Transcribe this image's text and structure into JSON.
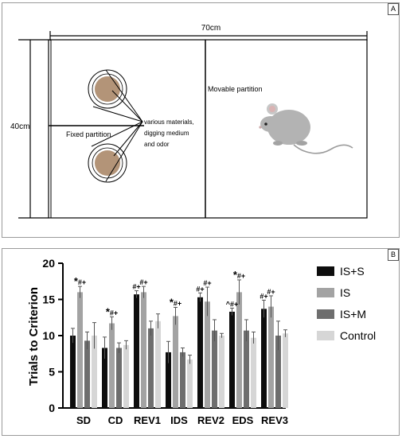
{
  "panel_a": {
    "label": "A",
    "width_text": "70cm",
    "height_text": "40cm",
    "fixed_partition": "Fixed partition",
    "movable_partition": "Movable partition",
    "materials_line1": "various materials,",
    "materials_line2": "digging medium",
    "materials_line3": "and odor"
  },
  "panel_b": {
    "label": "B"
  },
  "colors": {
    "IS+S": "#0d0d0d",
    "IS": "#a3a3a3",
    "IS+M": "#6e6e6e",
    "Control": "#d6d6d6"
  },
  "chart_data": {
    "type": "bar",
    "ylabel": "Trials to Criterion",
    "xlabel": "",
    "ylim": [
      0,
      20
    ],
    "yticks": [
      "0",
      "5",
      "10",
      "15",
      "20"
    ],
    "categories": [
      "SD",
      "CD",
      "REV1",
      "IDS",
      "REV2",
      "EDS",
      "REV3"
    ],
    "series": [
      {
        "name": "IS+S",
        "values": [
          10.0,
          8.3,
          15.7,
          7.7,
          15.3,
          13.3,
          13.7
        ],
        "errors": [
          1.0,
          1.5,
          0.5,
          1.5,
          0.6,
          0.5,
          1.2
        ]
      },
      {
        "name": "IS",
        "values": [
          16.0,
          11.7,
          16.0,
          12.7,
          14.7,
          16.0,
          14.0
        ],
        "errors": [
          0.8,
          0.9,
          0.8,
          1.2,
          2.0,
          1.7,
          1.5
        ]
      },
      {
        "name": "IS+M",
        "values": [
          9.3,
          8.3,
          11.0,
          7.7,
          10.7,
          10.7,
          10.0
        ],
        "errors": [
          1.2,
          0.7,
          1.0,
          0.6,
          1.5,
          1.5,
          2.0
        ]
      },
      {
        "name": "Control",
        "values": [
          10.0,
          8.7,
          12.0,
          6.7,
          10.0,
          9.7,
          10.3
        ],
        "errors": [
          1.8,
          0.6,
          1.0,
          0.6,
          0.3,
          0.8,
          0.5
        ]
      }
    ],
    "annotations": [
      {
        "category": "SD",
        "series": "IS",
        "text": "*#+"
      },
      {
        "category": "CD",
        "series": "IS",
        "text": "*#+"
      },
      {
        "category": "REV1",
        "series": "IS+S",
        "text": "#+"
      },
      {
        "category": "REV1",
        "series": "IS",
        "text": "#+"
      },
      {
        "category": "IDS",
        "series": "IS",
        "text": "*#+"
      },
      {
        "category": "REV2",
        "series": "IS+S",
        "text": "#+"
      },
      {
        "category": "REV2",
        "series": "IS",
        "text": "#+"
      },
      {
        "category": "EDS",
        "series": "IS+S",
        "text": "^#+"
      },
      {
        "category": "EDS",
        "series": "IS",
        "text": "*#+"
      },
      {
        "category": "REV3",
        "series": "IS+S",
        "text": "#+"
      },
      {
        "category": "REV3",
        "series": "IS",
        "text": "#+"
      }
    ],
    "legend_position": "right"
  }
}
